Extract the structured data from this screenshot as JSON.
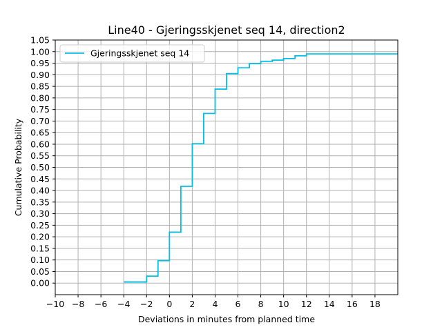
{
  "chart_data": {
    "type": "line",
    "step": "post",
    "title": "Line40 - Gjeringsskjenet seq 14, direction2",
    "xlabel": "Deviations in minutes from planned time",
    "ylabel": "Cumulative Probability",
    "xlim": [
      -10,
      20
    ],
    "ylim": [
      -0.05,
      1.05
    ],
    "xticks": [
      -10,
      -8,
      -6,
      -4,
      -2,
      0,
      2,
      4,
      6,
      8,
      10,
      12,
      14,
      16,
      18
    ],
    "xtick_labels": [
      "−10",
      "−8",
      "−6",
      "−4",
      "−2",
      "0",
      "2",
      "4",
      "6",
      "8",
      "10",
      "12",
      "14",
      "16",
      "18"
    ],
    "yticks": [
      0,
      0.05,
      0.1,
      0.15,
      0.2,
      0.25,
      0.3,
      0.35,
      0.4,
      0.45,
      0.5,
      0.55,
      0.6,
      0.65,
      0.7,
      0.75,
      0.8,
      0.85,
      0.9,
      0.95,
      1.0,
      1.05
    ],
    "ytick_labels": [
      "0.00",
      "0.05",
      "0.10",
      "0.15",
      "0.20",
      "0.25",
      "0.30",
      "0.35",
      "0.40",
      "0.45",
      "0.50",
      "0.55",
      "0.60",
      "0.65",
      "0.70",
      "0.75",
      "0.80",
      "0.85",
      "0.90",
      "0.95",
      "1.00",
      "1.05"
    ],
    "grid": true,
    "legend_position": "top-left",
    "series": [
      {
        "name": "Gjeringsskjenet seq 14",
        "color": "#00bfe6",
        "x": [
          -4,
          -2,
          -1,
          0,
          1,
          2,
          3,
          4,
          5,
          6,
          7,
          8,
          9,
          10,
          11,
          12,
          20
        ],
        "y": [
          0.005,
          0.03,
          0.097,
          0.22,
          0.418,
          0.602,
          0.733,
          0.838,
          0.905,
          0.93,
          0.948,
          0.958,
          0.963,
          0.97,
          0.982,
          0.99,
          0.99
        ]
      }
    ]
  }
}
